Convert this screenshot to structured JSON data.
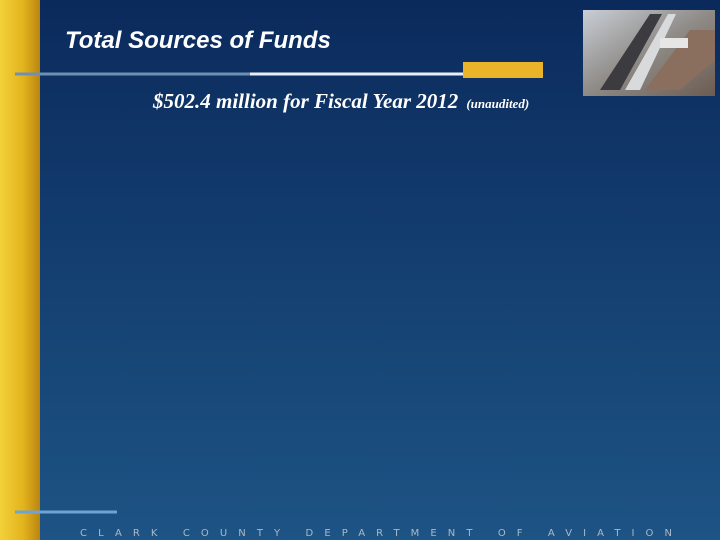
{
  "header": {
    "title": "Total Sources of Funds",
    "subtitle": "$502.4 million for Fiscal Year 2012",
    "note": "(unaudited)"
  },
  "footer": {
    "text": "CLARK COUNTY DEPARTMENT OF AVIATION"
  }
}
